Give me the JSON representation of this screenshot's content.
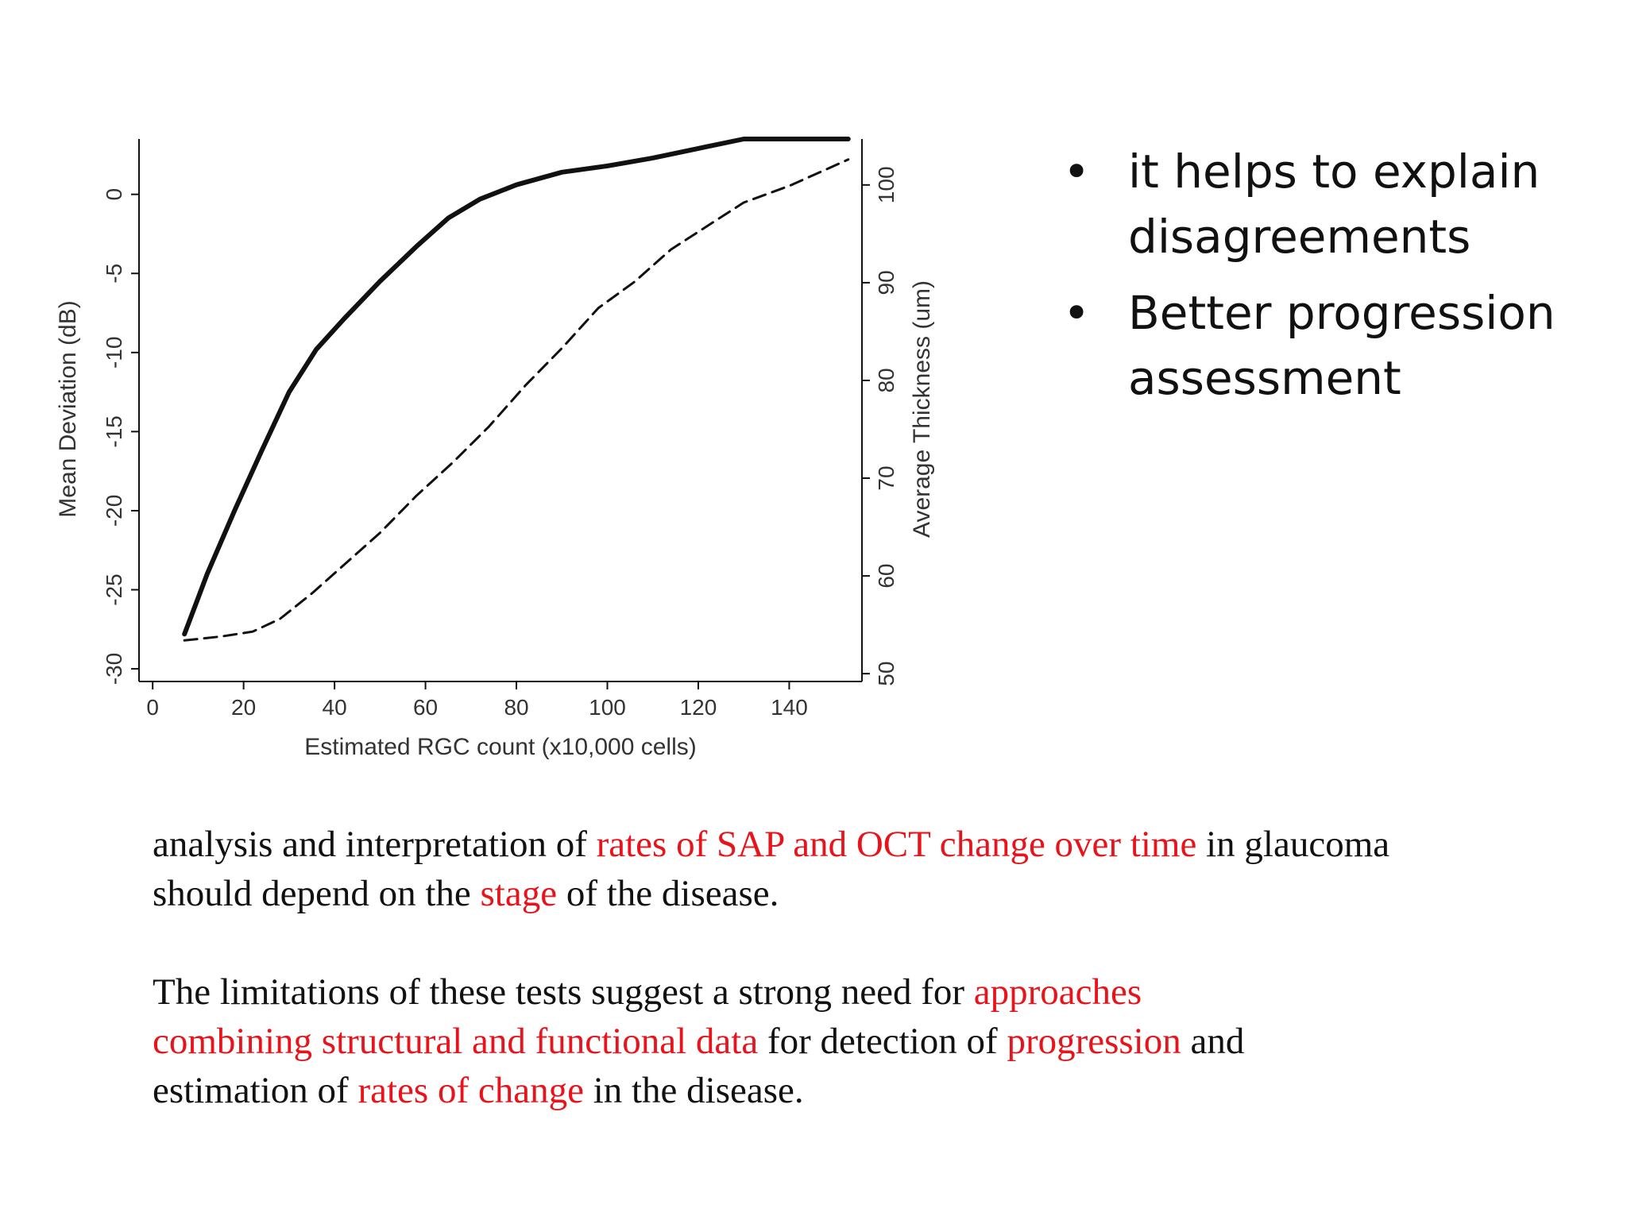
{
  "bullets": [
    "it helps to explain disagreements",
    "Better progression assessment"
  ],
  "paragraph1": {
    "s1": "analysis and interpretation of ",
    "h1": "rates of SAP and OCT change over time",
    "s2": " in glaucoma should depend on the ",
    "h2": "stage",
    "s3": " of the disease."
  },
  "paragraph2": {
    "s1": "The limitations of these tests suggest a strong need for ",
    "h1": "approaches combining structural and functional data",
    "s2": " for detection of ",
    "h2": "progression",
    "s3": " and estimation of ",
    "h3": "rates of change",
    "s4": " in the disease."
  },
  "colors": {
    "highlight": "#e8141b",
    "text": "#111111",
    "chart_ink": "#111111"
  },
  "chart_data": {
    "type": "line",
    "xlabel": "Estimated RGC count (x10,000 cells)",
    "ylabel": "Mean Deviation (dB)",
    "y2label": "Average Thickness (um)",
    "xlim": [
      -3,
      156
    ],
    "ylim": [
      -30.8,
      3.5
    ],
    "y2lim": [
      49.2,
      104.7
    ],
    "xticks": [
      0,
      20,
      40,
      60,
      80,
      100,
      120,
      140
    ],
    "yticks": [
      0,
      -5,
      -10,
      -15,
      -20,
      -25,
      -30
    ],
    "y2ticks": [
      100,
      90,
      80,
      70,
      60,
      50
    ],
    "series": [
      {
        "name": "Mean Deviation (dB)",
        "axis": "left",
        "style": "solid",
        "x": [
          7,
          12,
          18,
          24,
          30,
          36,
          42,
          50,
          58,
          65,
          72,
          80,
          90,
          100,
          110,
          120,
          130,
          140,
          153
        ],
        "y": [
          -27.8,
          -24.0,
          -20.0,
          -16.2,
          -12.5,
          -9.8,
          -7.9,
          -5.5,
          -3.3,
          -1.5,
          -0.3,
          0.6,
          1.4,
          1.8,
          2.3,
          2.9,
          3.5,
          4.2,
          5.0
        ]
      },
      {
        "name": "Average Thickness (um)",
        "axis": "right",
        "style": "dashed",
        "x": [
          7,
          15,
          22,
          28,
          35,
          42,
          50,
          58,
          66,
          74,
          82,
          90,
          98,
          106,
          114,
          122,
          130,
          140,
          153
        ],
        "y": [
          53.4,
          53.8,
          54.3,
          55.6,
          58.2,
          61.1,
          64.4,
          68.2,
          71.6,
          75.3,
          79.5,
          83.3,
          87.4,
          90.1,
          93.4,
          95.8,
          98.2,
          99.9,
          102.6
        ]
      }
    ]
  }
}
